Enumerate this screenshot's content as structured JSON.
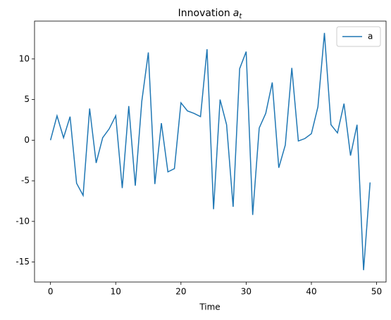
{
  "chart_data": {
    "type": "line",
    "title": "Innovation",
    "title_symbol": "a",
    "title_subscript": "t",
    "xlabel": "Time",
    "x": [
      0,
      1,
      2,
      3,
      4,
      5,
      6,
      7,
      8,
      9,
      10,
      11,
      12,
      13,
      14,
      15,
      16,
      17,
      18,
      19,
      20,
      21,
      22,
      23,
      24,
      25,
      26,
      27,
      28,
      29,
      30,
      31,
      32,
      33,
      34,
      35,
      36,
      37,
      38,
      39,
      40,
      41,
      42,
      43,
      44,
      45,
      46,
      47,
      48,
      49
    ],
    "series": [
      {
        "name": "a",
        "color": "#1f77b4",
        "values": [
          0,
          3.0,
          0.3,
          2.9,
          -5.3,
          -6.8,
          3.9,
          -2.8,
          0.3,
          1.4,
          3.0,
          -5.9,
          4.2,
          -5.6,
          4.8,
          10.8,
          -5.4,
          2.1,
          -3.9,
          -3.5,
          4.6,
          3.6,
          3.3,
          2.9,
          11.2,
          -8.5,
          5.0,
          1.9,
          -8.2,
          8.8,
          10.9,
          -9.2,
          1.5,
          3.3,
          7.1,
          -3.4,
          -0.6,
          8.9,
          -0.1,
          0.2,
          0.8,
          4.1,
          13.2,
          1.9,
          0.9,
          4.5,
          -1.9,
          1.9,
          -16.0,
          -5.2
        ]
      }
    ],
    "xlim": [
      -2.45,
      51.45
    ],
    "xticks": [
      0,
      10,
      20,
      30,
      40,
      50
    ],
    "ylim": [
      -17.46,
      14.66
    ],
    "yticks": [
      -15,
      -10,
      -5,
      0,
      5,
      10
    ],
    "grid": false,
    "legend": "upper right"
  }
}
